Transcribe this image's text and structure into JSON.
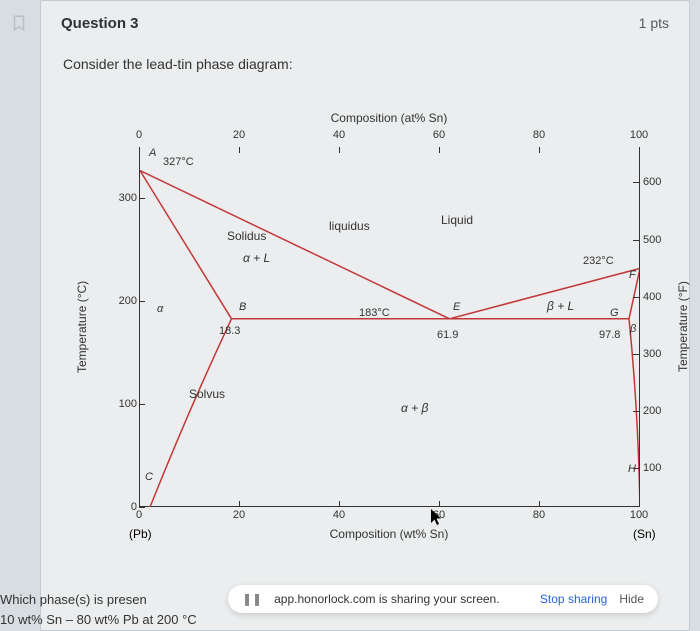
{
  "question": {
    "number": "Question 3",
    "points": "1 pts",
    "prompt": "Consider the lead-tin phase diagram:"
  },
  "footer": {
    "line1": "Which phase(s) is presen",
    "line2": "10 wt% Sn – 80 wt% Pb at 200 °C"
  },
  "share": {
    "msg": "app.honorlock.com is sharing your screen.",
    "stop": "Stop sharing",
    "hide": "Hide"
  },
  "axes": {
    "top_title": "Composition (at% Sn)",
    "bottom_title": "Composition (wt% Sn)",
    "left_title": "Temperature (°C)",
    "right_title": "Temperature (°F)",
    "left_ticks": [
      {
        "v": 0,
        "l": "0"
      },
      {
        "v": 100,
        "l": "100"
      },
      {
        "v": 200,
        "l": "200"
      },
      {
        "v": 300,
        "l": "300"
      }
    ],
    "right_ticks": [
      {
        "v": 100,
        "l": "100"
      },
      {
        "v": 200,
        "l": "200"
      },
      {
        "v": 300,
        "l": "300"
      },
      {
        "v": 400,
        "l": "400"
      },
      {
        "v": 500,
        "l": "500"
      },
      {
        "v": 600,
        "l": "600"
      }
    ],
    "top_ticks": [
      {
        "v": 0,
        "l": "0"
      },
      {
        "v": 20,
        "l": "20"
      },
      {
        "v": 40,
        "l": "40"
      },
      {
        "v": 60,
        "l": "60"
      },
      {
        "v": 80,
        "l": "80"
      },
      {
        "v": 100,
        "l": "100"
      }
    ],
    "bot_ticks": [
      {
        "v": 0,
        "l": "0"
      },
      {
        "v": 20,
        "l": "20"
      },
      {
        "v": 40,
        "l": "40"
      },
      {
        "v": 60,
        "l": "60"
      },
      {
        "v": 80,
        "l": "80"
      },
      {
        "v": 100,
        "l": "100"
      }
    ],
    "pb": "(Pb)",
    "sn": "(Sn)",
    "left_range": [
      0,
      350
    ],
    "right_range_f": [
      32,
      662
    ]
  },
  "labels": {
    "A": "A",
    "B": "B",
    "C": "C",
    "E": "E",
    "F": "F",
    "G": "G",
    "H": "H",
    "t327": "327°C",
    "t232": "232°C",
    "t183": "183°C",
    "p183": "18.3",
    "p619": "61.9",
    "p978": "97.8",
    "liquid": "Liquid",
    "liquidus": "liquidus",
    "solidus": "Solidus",
    "alpha": "α",
    "aL": "α + L",
    "bL": "β + L",
    "ab": "α + β",
    "solvus": "Solvus",
    "beta": "β"
  },
  "colors": {
    "line": "#c23838",
    "axis": "#333333",
    "bg": "#ebedee"
  }
}
